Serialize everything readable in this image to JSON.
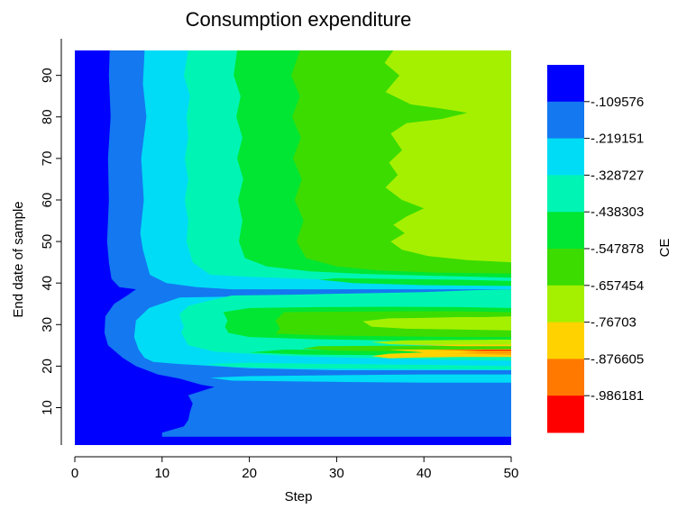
{
  "chart_data": {
    "type": "heatmap",
    "title": "Consumption expenditure",
    "xlabel": "Step",
    "ylabel": "End date of sample",
    "colorbar_label": "CE",
    "xlim": [
      0,
      50
    ],
    "ylim": [
      0,
      96
    ],
    "x_ticks": [
      0,
      10,
      20,
      30,
      40,
      50
    ],
    "y_ticks": [
      10,
      20,
      30,
      40,
      50,
      60,
      70,
      80,
      90
    ],
    "colorbar_ticks": [
      "-.109576",
      "-.219151",
      "-.328727",
      "-.438303",
      "-.547878",
      "-.657454",
      "-.76703",
      "-.876605",
      "-.986181"
    ],
    "colorbar_colors": [
      "#0000ff",
      "#1478f0",
      "#00dcf5",
      "#00f5b4",
      "#00e632",
      "#3cdc00",
      "#a5f000",
      "#ffd200",
      "#ff7800",
      "#ff0000"
    ],
    "contour_boundaries": [
      {
        "level": "-.109576",
        "points": [
          [
            4.0,
            96
          ],
          [
            3.9,
            90
          ],
          [
            4.1,
            80
          ],
          [
            3.8,
            70
          ],
          [
            3.9,
            60
          ],
          [
            3.7,
            50
          ],
          [
            3.9,
            45
          ],
          [
            4.2,
            41
          ],
          [
            5.1,
            39
          ],
          [
            7.0,
            38.5
          ],
          [
            6.0,
            37
          ],
          [
            4.5,
            35
          ],
          [
            3.5,
            32
          ],
          [
            3.4,
            28
          ],
          [
            3.8,
            25
          ],
          [
            5.5,
            22
          ],
          [
            7.0,
            20
          ],
          [
            9.5,
            18
          ],
          [
            12.0,
            17
          ],
          [
            14.5,
            15.5
          ],
          [
            16.0,
            15
          ],
          [
            13.0,
            13
          ],
          [
            13.5,
            11
          ],
          [
            13.2,
            9
          ],
          [
            13.0,
            7
          ],
          [
            12.5,
            5.5
          ],
          [
            10.0,
            4
          ],
          [
            10.0,
            1
          ]
        ]
      },
      {
        "level": "-.219151",
        "points": [
          [
            8.0,
            96
          ],
          [
            7.8,
            88
          ],
          [
            8.2,
            80
          ],
          [
            7.6,
            70
          ],
          [
            7.9,
            60
          ],
          [
            7.5,
            52
          ],
          [
            7.8,
            48
          ],
          [
            8.6,
            42
          ],
          [
            10.5,
            40
          ],
          [
            14.0,
            39
          ],
          [
            18,
            38.5
          ],
          [
            25,
            38.5
          ],
          [
            32,
            38.5
          ],
          [
            40,
            38.5
          ],
          [
            47,
            38.5
          ],
          [
            50,
            38.5
          ],
          [
            50,
            36.5
          ],
          [
            42,
            37
          ],
          [
            25,
            37
          ],
          [
            12,
            36.5
          ],
          [
            8.5,
            34
          ],
          [
            7.0,
            31
          ],
          [
            6.8,
            27
          ],
          [
            7.3,
            24
          ],
          [
            8.0,
            22
          ],
          [
            9.0,
            21
          ],
          [
            12,
            20.5
          ],
          [
            20,
            19.5
          ],
          [
            30,
            19
          ],
          [
            40,
            19
          ],
          [
            50,
            19
          ],
          [
            50,
            18
          ],
          [
            40,
            18
          ],
          [
            30,
            17.8
          ],
          [
            20,
            17.6
          ],
          [
            15.5,
            17.2
          ],
          [
            18,
            16.5
          ],
          [
            30,
            16.2
          ],
          [
            40,
            16
          ],
          [
            50,
            16
          ]
        ]
      },
      {
        "level": "-.328727",
        "points": [
          [
            13.0,
            96
          ],
          [
            12.5,
            90
          ],
          [
            13.2,
            85
          ],
          [
            12.8,
            80
          ],
          [
            13.0,
            75
          ],
          [
            12.6,
            70
          ],
          [
            13.0,
            65
          ],
          [
            12.6,
            60
          ],
          [
            13.0,
            55
          ],
          [
            12.8,
            50
          ],
          [
            13.5,
            45
          ],
          [
            15.5,
            42
          ],
          [
            20,
            41.5
          ],
          [
            27,
            41
          ],
          [
            32,
            40.5
          ],
          [
            38,
            40.2
          ],
          [
            44,
            40
          ],
          [
            50,
            39.8
          ],
          [
            50,
            38.5
          ],
          [
            46,
            38.3
          ],
          [
            40,
            37.8
          ],
          [
            32,
            37.5
          ],
          [
            25,
            37.2
          ],
          [
            18,
            37
          ],
          [
            13,
            34.5
          ],
          [
            12,
            32.5
          ],
          [
            12.2,
            31
          ],
          [
            12.5,
            29.5
          ],
          [
            12.2,
            28
          ],
          [
            12.6,
            26.5
          ],
          [
            13,
            25
          ],
          [
            16,
            23.5
          ],
          [
            24,
            22.5
          ],
          [
            32,
            22
          ],
          [
            42,
            21.5
          ],
          [
            50,
            21.3
          ],
          [
            50,
            20
          ],
          [
            40,
            20.3
          ],
          [
            30,
            20.5
          ],
          [
            20,
            20.8
          ],
          [
            15,
            20.5
          ],
          [
            18,
            19.8
          ],
          [
            25,
            19.5
          ],
          [
            40,
            19.3
          ],
          [
            50,
            19.2
          ]
        ]
      },
      {
        "level": "-.438303",
        "points": [
          [
            18.6,
            96
          ],
          [
            18.2,
            90
          ],
          [
            19.0,
            85
          ],
          [
            18.5,
            80
          ],
          [
            19.2,
            75
          ],
          [
            18.6,
            70
          ],
          [
            19.3,
            65
          ],
          [
            18.7,
            60
          ],
          [
            19.2,
            55
          ],
          [
            18.8,
            50
          ],
          [
            19.5,
            46
          ],
          [
            22,
            44
          ],
          [
            27,
            42.8
          ],
          [
            33,
            42.2
          ],
          [
            40,
            41.8
          ],
          [
            46,
            41.5
          ],
          [
            50,
            41.3
          ],
          [
            50,
            40.5
          ],
          [
            44,
            40.8
          ],
          [
            36,
            41
          ],
          [
            30,
            41.2
          ],
          [
            28,
            40.8
          ],
          [
            32,
            40
          ],
          [
            40,
            39.5
          ],
          [
            50,
            39.3
          ],
          [
            50,
            34
          ],
          [
            44,
            34.2
          ],
          [
            36,
            34.3
          ],
          [
            28,
            34.2
          ],
          [
            20,
            34
          ],
          [
            17,
            33
          ],
          [
            17.5,
            31
          ],
          [
            17.2,
            29.5
          ],
          [
            17.6,
            28
          ],
          [
            20,
            27
          ],
          [
            27,
            26.5
          ],
          [
            35,
            26.2
          ],
          [
            44,
            26
          ],
          [
            50,
            26
          ],
          [
            50,
            23.5
          ],
          [
            42,
            23.6
          ],
          [
            32,
            23.8
          ],
          [
            24,
            24
          ],
          [
            20,
            23.3
          ],
          [
            26,
            22.8
          ],
          [
            36,
            22.6
          ],
          [
            46,
            22.4
          ],
          [
            50,
            22.3
          ]
        ]
      },
      {
        "level": "-.547878",
        "points": [
          [
            25.8,
            96
          ],
          [
            24.8,
            90
          ],
          [
            25.8,
            85
          ],
          [
            24.9,
            80
          ],
          [
            25.9,
            75
          ],
          [
            25.0,
            70
          ],
          [
            26.0,
            65
          ],
          [
            25.2,
            60
          ],
          [
            26.2,
            55
          ],
          [
            25.4,
            50
          ],
          [
            26.5,
            46
          ],
          [
            30,
            44
          ],
          [
            35,
            43
          ],
          [
            42,
            42.5
          ],
          [
            50,
            42.3
          ],
          [
            50,
            33
          ],
          [
            44,
            33.2
          ],
          [
            38,
            33.2
          ],
          [
            30,
            33.1
          ],
          [
            24,
            33
          ],
          [
            23,
            31
          ],
          [
            23.5,
            29
          ],
          [
            23,
            27.8
          ],
          [
            28,
            27.4
          ],
          [
            36,
            27.2
          ],
          [
            44,
            27
          ],
          [
            50,
            27
          ],
          [
            50,
            25
          ],
          [
            44,
            24.9
          ],
          [
            36,
            24.9
          ],
          [
            28,
            24.8
          ],
          [
            26,
            24.2
          ],
          [
            30,
            23.7
          ],
          [
            40,
            23.5
          ],
          [
            50,
            23.4
          ]
        ]
      },
      {
        "level": "-.657454",
        "points": [
          [
            36.5,
            96
          ],
          [
            35.5,
            93
          ],
          [
            37.2,
            90
          ],
          [
            35.6,
            86
          ],
          [
            38.5,
            83
          ],
          [
            42,
            82
          ],
          [
            45,
            81
          ],
          [
            42,
            79.5
          ],
          [
            38,
            78.5
          ],
          [
            36.2,
            76
          ],
          [
            37.5,
            72
          ],
          [
            36,
            69
          ],
          [
            37.0,
            66
          ],
          [
            35.6,
            63
          ],
          [
            37.5,
            60
          ],
          [
            40,
            58
          ],
          [
            38,
            56
          ],
          [
            36.5,
            54
          ],
          [
            37.8,
            52
          ],
          [
            36.2,
            50
          ],
          [
            37.5,
            48
          ],
          [
            40.5,
            46.5
          ],
          [
            45,
            45.5
          ],
          [
            50,
            45
          ],
          [
            50,
            32
          ],
          [
            47,
            31.8
          ],
          [
            44,
            31.8
          ],
          [
            40,
            31.6
          ],
          [
            36,
            31.5
          ],
          [
            33,
            30.8
          ],
          [
            34,
            29.5
          ],
          [
            38,
            29
          ],
          [
            44,
            28.8
          ],
          [
            50,
            28.6
          ],
          [
            50,
            26.4
          ],
          [
            44,
            26.3
          ],
          [
            38,
            26.2
          ],
          [
            34,
            25.8
          ],
          [
            36,
            25.3
          ],
          [
            44,
            25.2
          ],
          [
            50,
            25.2
          ]
        ]
      },
      {
        "level": "-.76703",
        "points": [
          [
            36,
            25.2
          ],
          [
            40,
            25
          ],
          [
            44,
            24.8
          ],
          [
            50,
            24.8
          ],
          [
            50,
            22.2
          ],
          [
            44,
            22.2
          ],
          [
            40,
            22.1
          ],
          [
            36,
            21.9
          ],
          [
            34,
            22.4
          ],
          [
            36,
            23
          ],
          [
            40,
            23.3
          ],
          [
            36,
            24
          ]
        ]
      },
      {
        "level": "-.876605",
        "points": [
          [
            41,
            23.8
          ],
          [
            44,
            24
          ],
          [
            50,
            24.1
          ],
          [
            50,
            22.8
          ],
          [
            46,
            22.9
          ],
          [
            42,
            23
          ]
        ]
      },
      {
        "level": "-.986181",
        "points": [
          [
            44,
            23.6
          ],
          [
            47,
            23.8
          ],
          [
            50,
            23.8
          ],
          [
            50,
            23.2
          ],
          [
            47,
            23.2
          ],
          [
            44,
            23.3
          ]
        ]
      }
    ]
  }
}
